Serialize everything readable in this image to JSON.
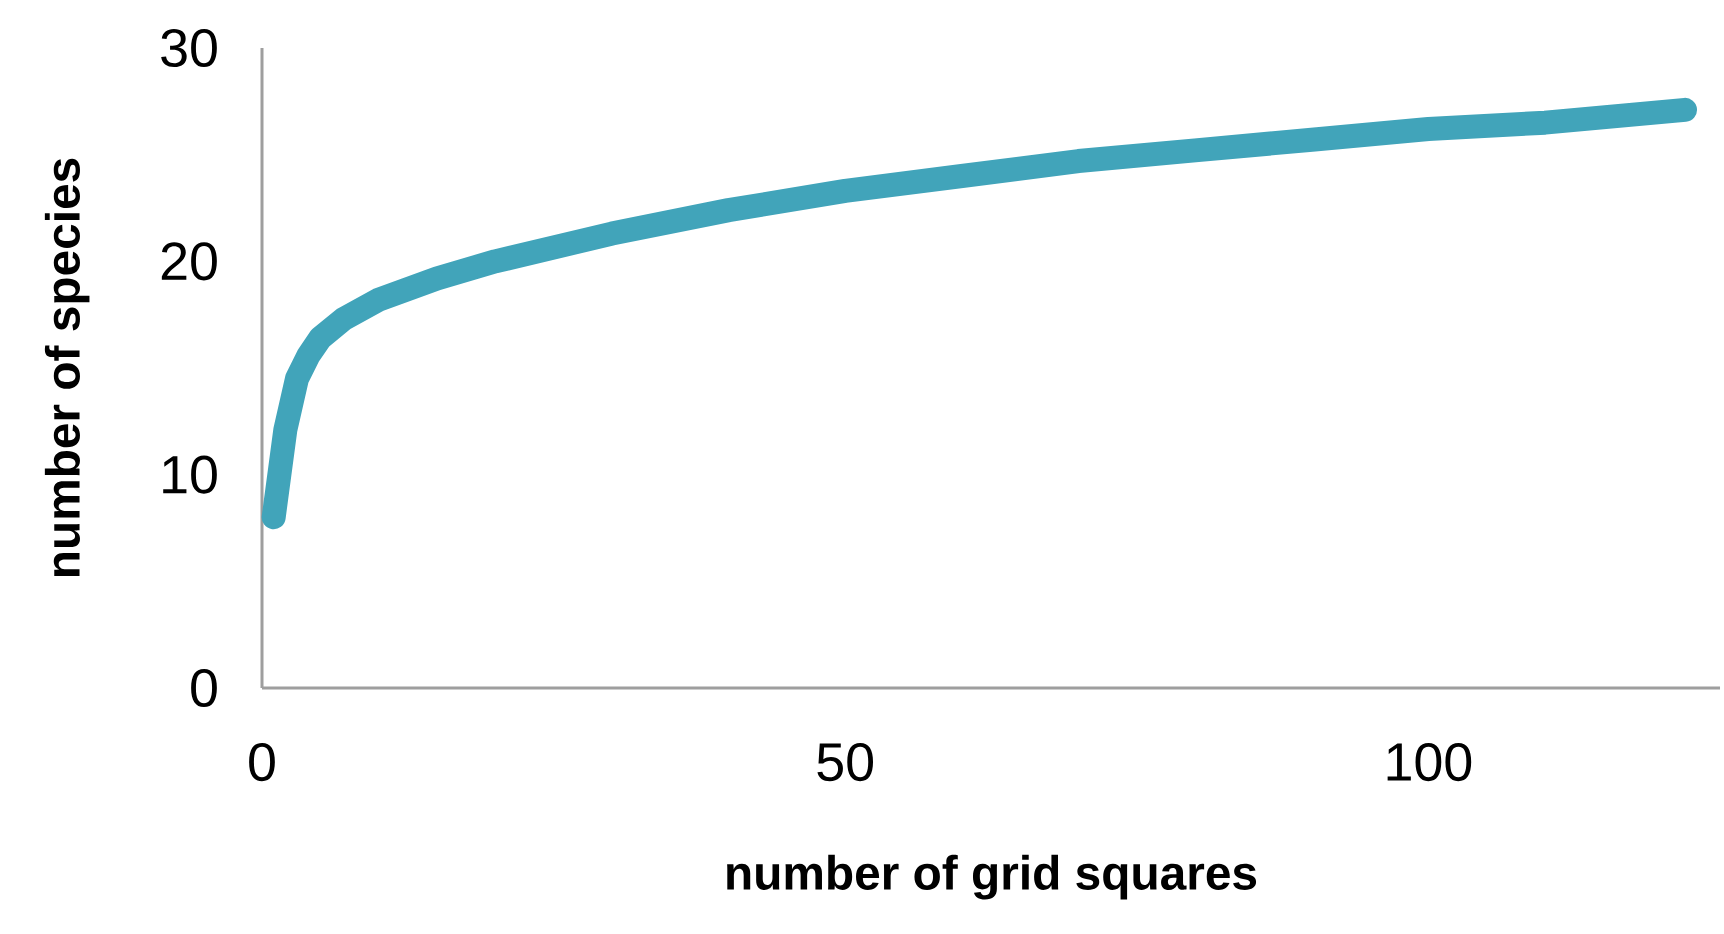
{
  "chart_data": {
    "type": "line",
    "xlabel": "number of grid squares",
    "ylabel": "number of species",
    "x": [
      1,
      2,
      3,
      4,
      5,
      7,
      10,
      15,
      20,
      30,
      40,
      50,
      60,
      70,
      80,
      90,
      100,
      110,
      122
    ],
    "series": [
      {
        "color": "#41a4ba",
        "values": [
          8.0,
          12.1,
          14.5,
          15.6,
          16.4,
          17.3,
          18.2,
          19.2,
          20.0,
          21.3,
          22.4,
          23.3,
          24.0,
          24.7,
          25.2,
          25.7,
          26.2,
          26.5,
          27.1
        ]
      }
    ],
    "xlim": [
      0,
      125
    ],
    "ylim": [
      0,
      30
    ],
    "xticks": [
      0,
      50,
      100
    ],
    "yticks": [
      0,
      10,
      20,
      30
    ],
    "grid": false,
    "marker": "none",
    "line_style": "solid"
  }
}
